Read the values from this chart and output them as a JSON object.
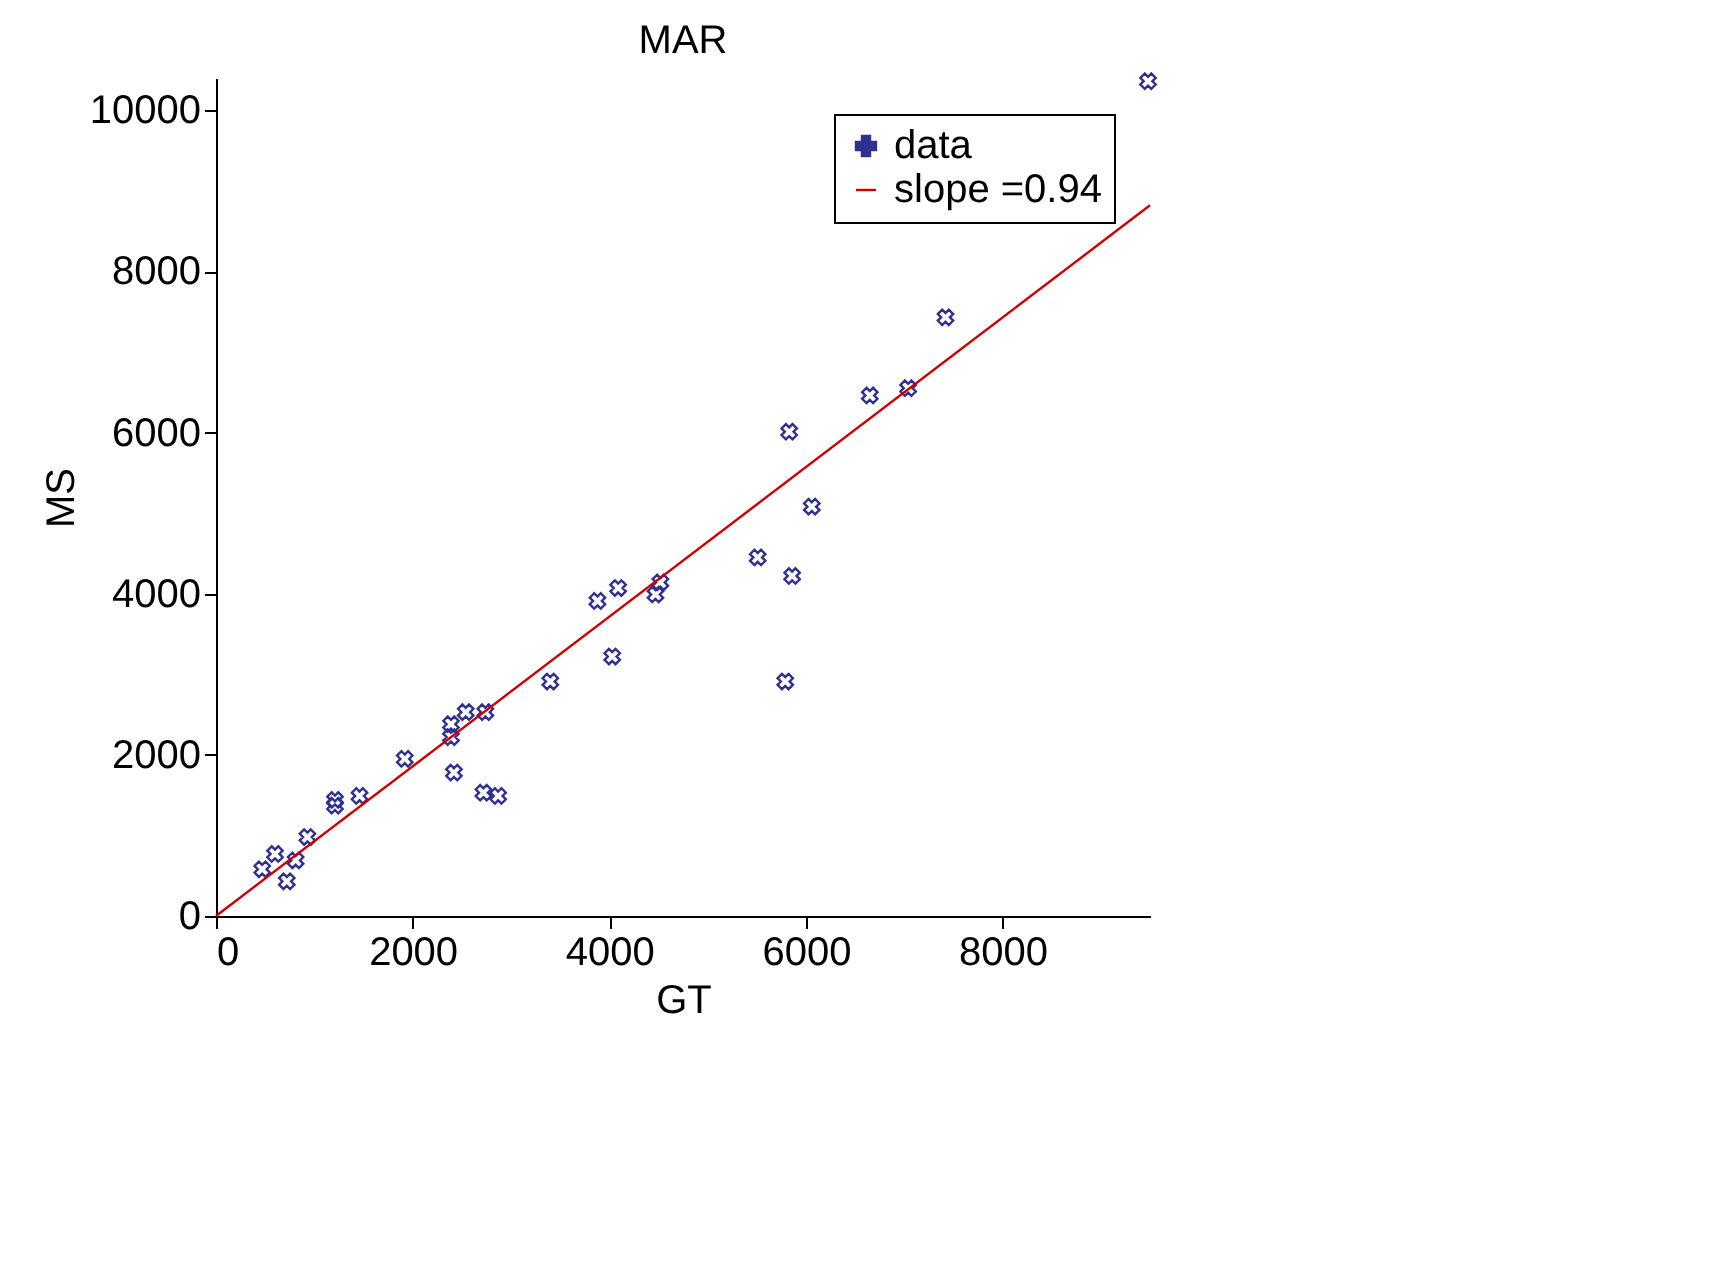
{
  "chart_data": {
    "type": "scatter",
    "title": "MAR",
    "xlabel": "GT",
    "ylabel": "MS",
    "xlim": [
      0,
      9500
    ],
    "ylim": [
      0,
      10400
    ],
    "xticks": [
      0,
      2000,
      4000,
      6000,
      8000
    ],
    "yticks": [
      0,
      2000,
      4000,
      6000,
      8000,
      10000
    ],
    "grid": false,
    "legend": "top right",
    "series": [
      {
        "name": "data",
        "color": "#2e3192",
        "marker": "cross",
        "x": [
          470,
          600,
          720,
          810,
          930,
          1210,
          1210,
          1460,
          1920,
          2390,
          2390,
          2420,
          2540,
          2740,
          2720,
          2870,
          3400,
          3880,
          4090,
          4030,
          4470,
          4520,
          5510,
          5830,
          5790,
          5860,
          6060,
          6650,
          7040,
          7420,
          9480
        ],
        "values": [
          580,
          770,
          430,
          690,
          980,
          1440,
          1370,
          1490,
          1950,
          2380,
          2220,
          1780,
          2530,
          2530,
          1530,
          1490,
          2910,
          3910,
          4070,
          3220,
          3990,
          4140,
          4450,
          6010,
          2910,
          4220,
          5080,
          6460,
          6550,
          7430,
          10360
        ]
      },
      {
        "name": "slope =0.94",
        "type": "line",
        "color": "#cc0000",
        "line_style": "solid",
        "x": [
          0,
          9500
        ],
        "values": [
          0,
          8820
        ]
      }
    ]
  }
}
